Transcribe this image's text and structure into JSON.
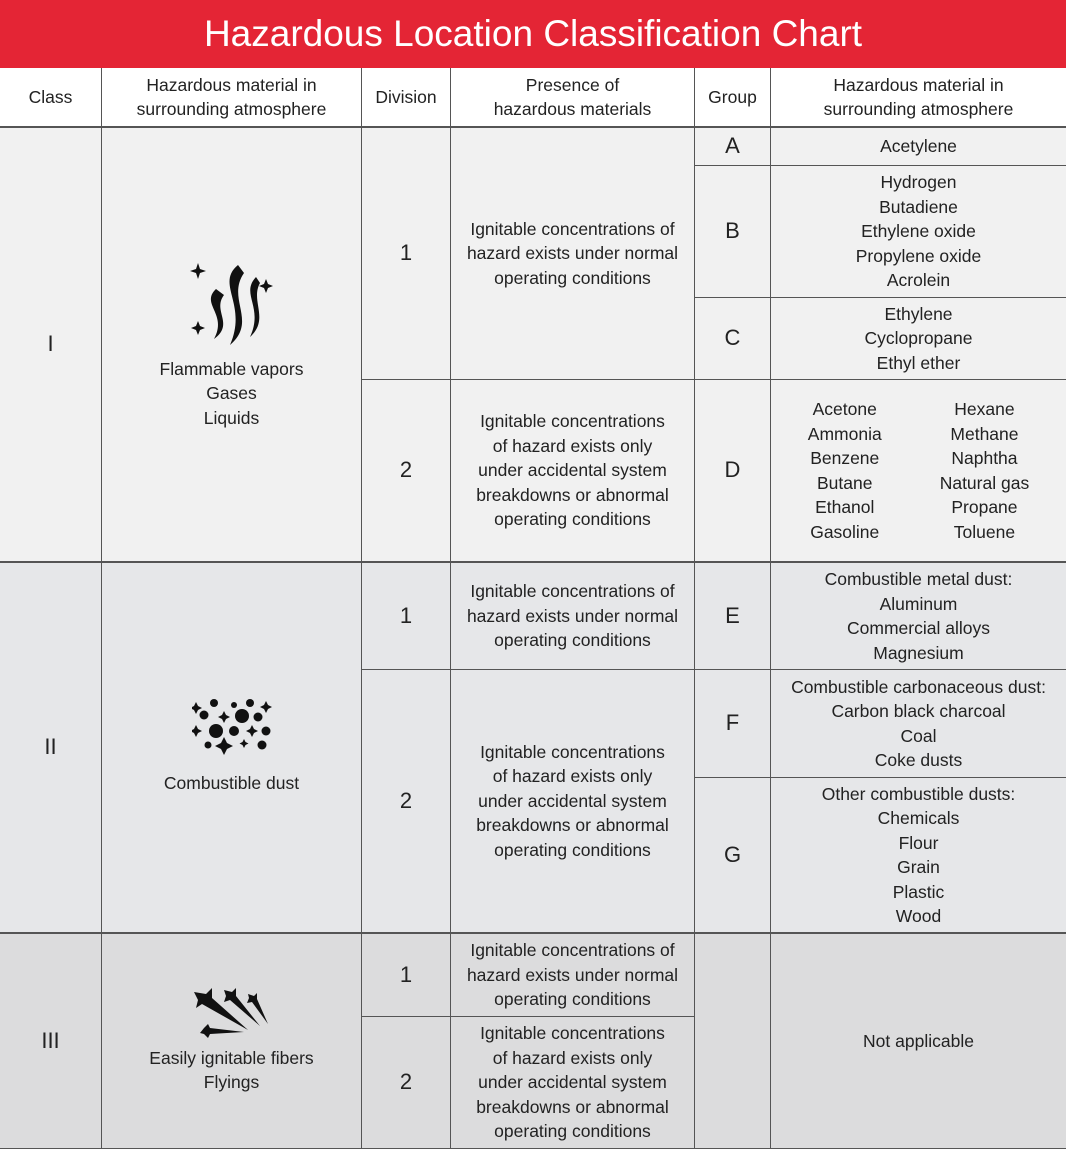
{
  "title": "Hazardous Location Classification Chart",
  "headers": [
    "Class",
    "Hazardous material in\nsurrounding atmosphere",
    "Division",
    "Presence of\nhazardous materials",
    "Group",
    "Hazardous material in\nsurrounding atmosphere"
  ],
  "colors": {
    "header_bg": "#e42535",
    "class1_bg": "#f1f1f1",
    "class2_bg": "#e6e7e9",
    "class3_bg": "#dcdcdd"
  },
  "presence": {
    "div1": "Ignitable concentrations of\nhazard exists under normal\noperating conditions",
    "div2": "Ignitable concentrations\nof hazard exists only\nunder accidental system\nbreakdowns or abnormal\noperating conditions"
  },
  "classes": [
    {
      "label": "I",
      "icon": "flame-vapors-icon",
      "material": "Flammable vapors\nGases\nLiquids",
      "divisions": [
        "1",
        "2"
      ],
      "groups": [
        {
          "label": "A",
          "materials": "Acetylene"
        },
        {
          "label": "B",
          "materials": "Hydrogen\nButadiene\nEthylene oxide\nPropylene oxide\nAcrolein"
        },
        {
          "label": "C",
          "materials": "Ethylene\nCyclopropane\nEthyl ether"
        },
        {
          "label": "D",
          "materials_left": "Acetone\nAmmonia\nBenzene\nButane\nEthanol\nGasoline",
          "materials_right": "Hexane\nMethane\nNaphtha\nNatural gas\nPropane\nToluene"
        }
      ]
    },
    {
      "label": "II",
      "icon": "dust-particles-icon",
      "material": "Combustible dust",
      "divisions": [
        "1",
        "2"
      ],
      "groups": [
        {
          "label": "E",
          "materials": "Combustible metal dust:\nAluminum\nCommercial alloys\nMagnesium"
        },
        {
          "label": "F",
          "materials": "Combustible carbonaceous dust:\nCarbon black charcoal\nCoal\nCoke dusts"
        },
        {
          "label": "G",
          "materials": "Other combustible dusts:\nChemicals\nFlour\nGrain\nPlastic\nWood"
        }
      ]
    },
    {
      "label": "III",
      "icon": "fibers-icon",
      "material": "Easily ignitable fibers\nFlyings",
      "divisions": [
        "1",
        "2"
      ],
      "not_applicable": "Not applicable"
    }
  ]
}
